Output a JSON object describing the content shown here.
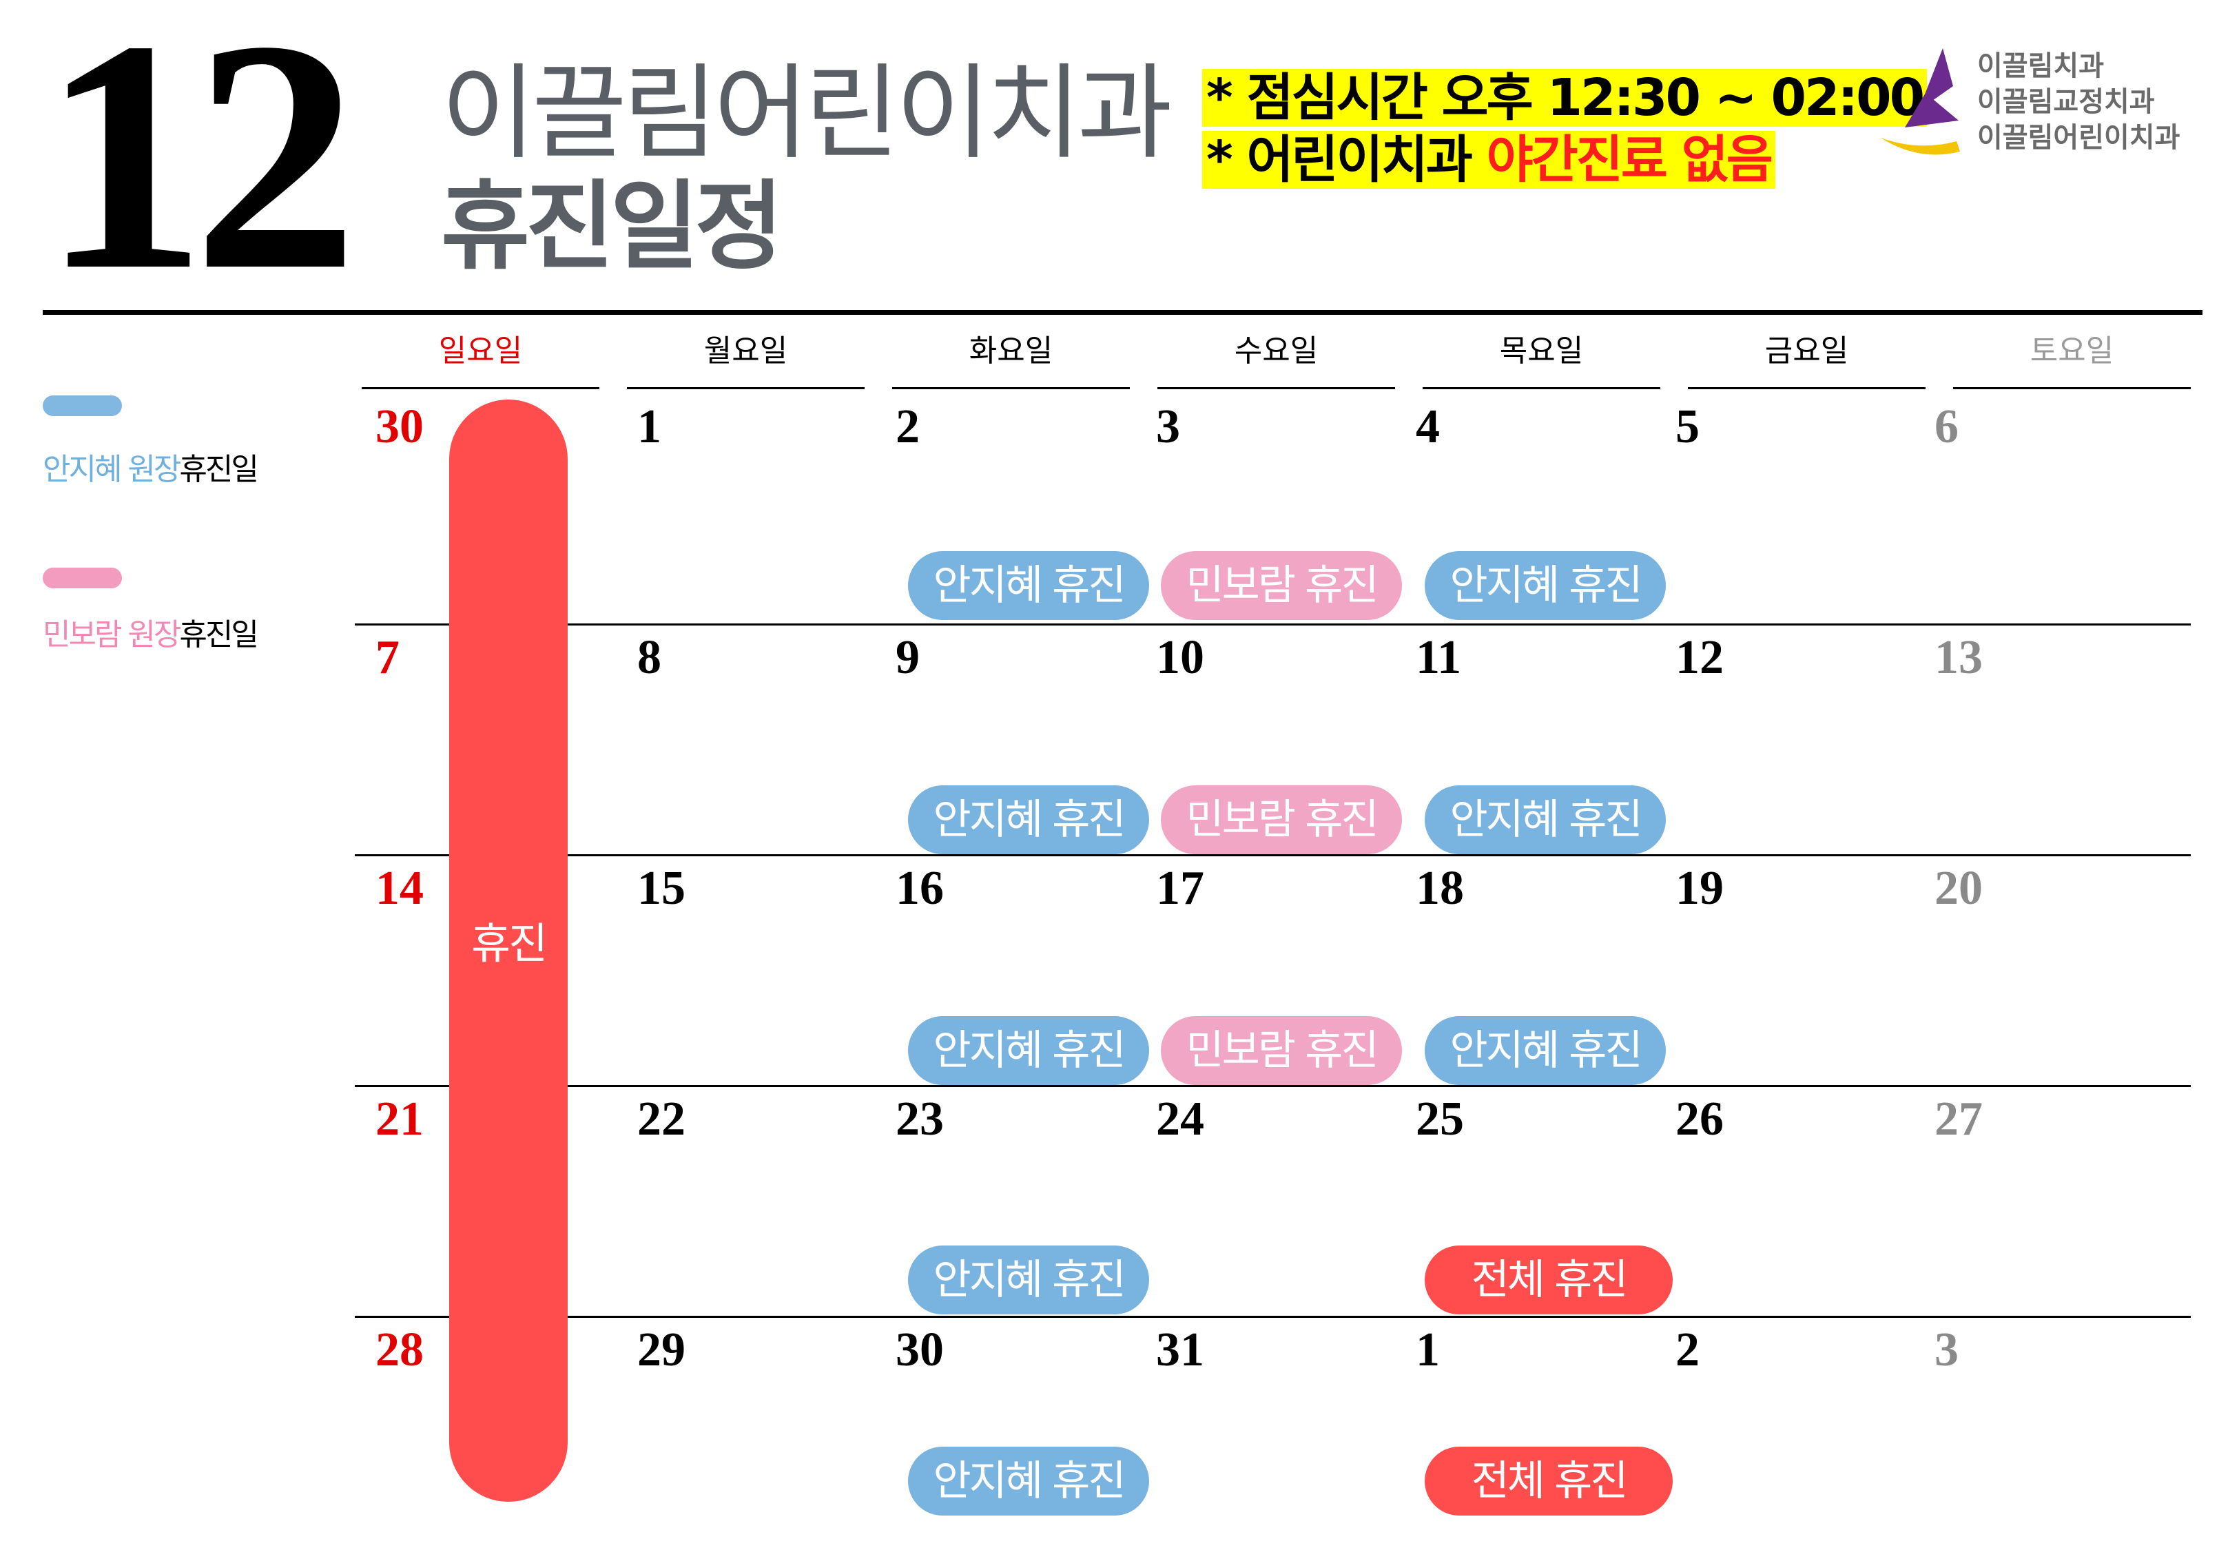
{
  "header": {
    "month": "12",
    "clinic_name": "이끌림어린이치과",
    "title": "휴진일정",
    "notice_lunch": "* 점심시간  오후 12:30 ~ 02:00",
    "notice_night_prefix": "* 어린이치과 ",
    "notice_night_highlight": "야간진료 없음"
  },
  "logo": {
    "names": [
      "이끌림치과",
      "이끌림교정치과",
      "이끌림어린이치과"
    ],
    "colors": [
      "#6a2a8e",
      "#f5c400"
    ]
  },
  "legend": [
    {
      "colored": "안지혜 원장",
      "rest": "휴진일",
      "color": "#81b8e2"
    },
    {
      "colored": "민보람 원장",
      "rest": "휴진일",
      "color": "#f49bc0"
    }
  ],
  "calendar": {
    "weekdays": [
      "일요일",
      "월요일",
      "화요일",
      "수요일",
      "목요일",
      "금요일",
      "토요일"
    ],
    "weeks": [
      [
        "30",
        "1",
        "2",
        "3",
        "4",
        "5",
        "6"
      ],
      [
        "7",
        "8",
        "9",
        "10",
        "11",
        "12",
        "13"
      ],
      [
        "14",
        "15",
        "16",
        "17",
        "18",
        "19",
        "20"
      ],
      [
        "21",
        "22",
        "23",
        "24",
        "25",
        "26",
        "27"
      ],
      [
        "28",
        "29",
        "30",
        "31",
        "1",
        "2",
        "3"
      ]
    ],
    "sunday_closed_label": "휴진",
    "events": [
      {
        "week": 0,
        "day": 2,
        "label": "안지혜 휴진",
        "kind": "blue"
      },
      {
        "week": 0,
        "day": 3,
        "label": "민보람 휴진",
        "kind": "pink"
      },
      {
        "week": 0,
        "day": 4,
        "label": "안지혜 휴진",
        "kind": "blue"
      },
      {
        "week": 1,
        "day": 2,
        "label": "안지혜 휴진",
        "kind": "blue"
      },
      {
        "week": 1,
        "day": 3,
        "label": "민보람 휴진",
        "kind": "pink"
      },
      {
        "week": 1,
        "day": 4,
        "label": "안지혜 휴진",
        "kind": "blue"
      },
      {
        "week": 2,
        "day": 2,
        "label": "안지혜 휴진",
        "kind": "blue"
      },
      {
        "week": 2,
        "day": 3,
        "label": "민보람 휴진",
        "kind": "pink"
      },
      {
        "week": 2,
        "day": 4,
        "label": "안지혜 휴진",
        "kind": "blue"
      },
      {
        "week": 3,
        "day": 2,
        "label": "안지혜 휴진",
        "kind": "blue"
      },
      {
        "week": 3,
        "day": 4,
        "label": "전체 휴진",
        "kind": "red"
      },
      {
        "week": 4,
        "day": 2,
        "label": "안지혜 휴진",
        "kind": "blue"
      },
      {
        "week": 4,
        "day": 4,
        "label": "전체 휴진",
        "kind": "red"
      }
    ],
    "colors": {
      "blue": "#79b3df",
      "pink": "#f2a6c6",
      "red": "#ff4d4d",
      "sunday": "#e00000",
      "saturday": "#8a8a8a"
    }
  }
}
